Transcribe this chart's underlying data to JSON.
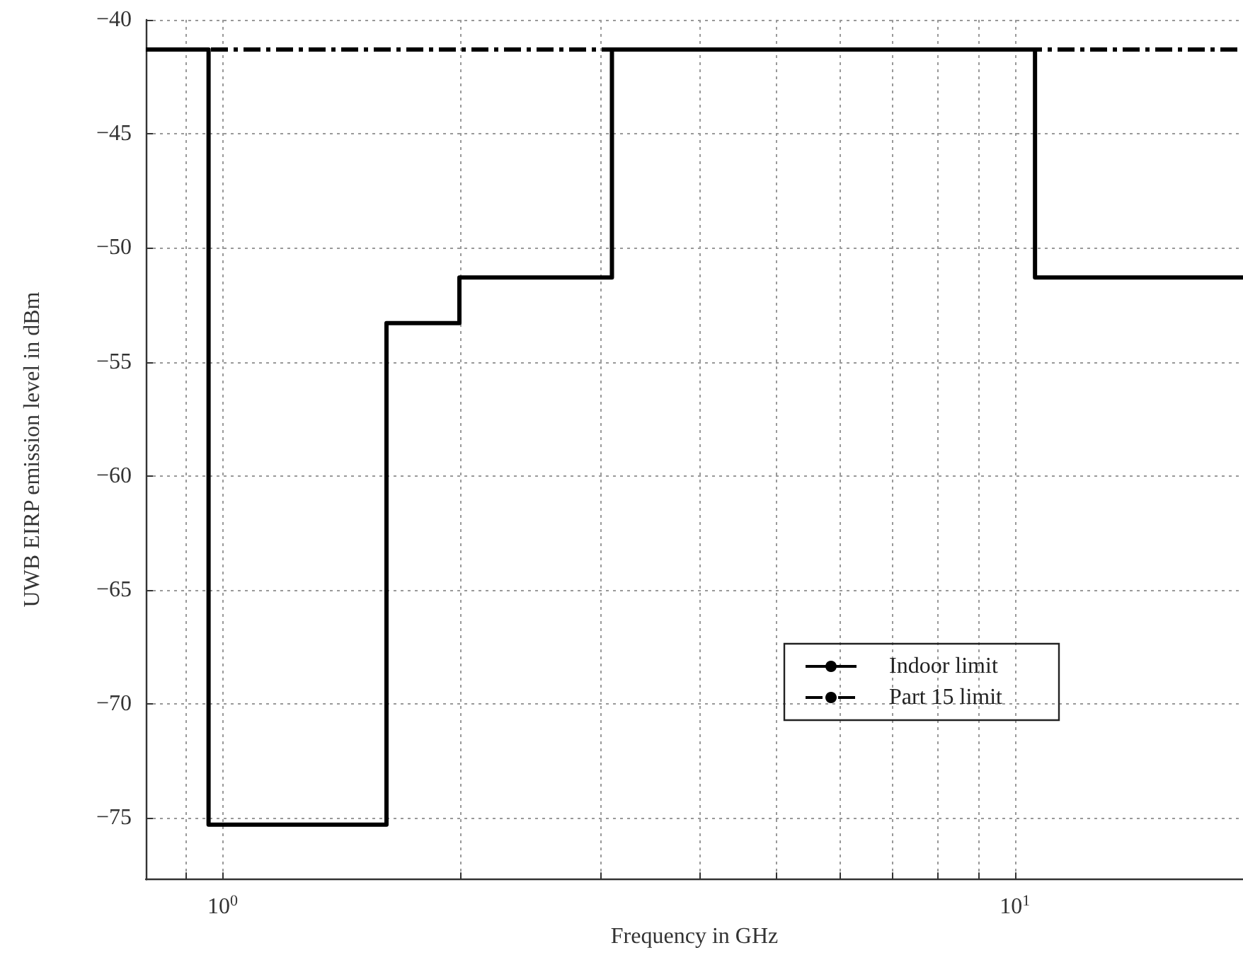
{
  "chart_data": {
    "type": "step",
    "xlabel": "Frequency in GHz",
    "ylabel": "UWB EIRP emission level in dBm",
    "log": "x",
    "xlim": [
      0.8,
      19.4
    ],
    "ylim": [
      -77.7,
      -40
    ],
    "xticks": [
      {
        "value": 0.8,
        "label": null
      },
      {
        "value": 0.9,
        "label": null
      },
      {
        "value": 1,
        "label": "10$^{0}$"
      },
      {
        "value": 2,
        "label": null
      },
      {
        "value": 3,
        "label": null
      },
      {
        "value": 4,
        "label": null
      },
      {
        "value": 5,
        "label": null
      },
      {
        "value": 6,
        "label": null
      },
      {
        "value": 7,
        "label": null
      },
      {
        "value": 8,
        "label": null
      },
      {
        "value": 9,
        "label": null
      },
      {
        "value": 10,
        "label": "10$^{1}$"
      }
    ],
    "yticks": [
      -75,
      -70,
      -65,
      -60,
      -55,
      -50,
      -45,
      -40
    ],
    "grid": true,
    "legend": "right",
    "marker": "none",
    "series": [
      {
        "name": "Indoor limit",
        "color": "#000000",
        "line_style": "solid",
        "x": [
          0.8,
          0.96,
          1.61,
          1.99,
          3.1,
          10.6,
          19.4
        ],
        "values": [
          -41.3,
          -75.3,
          -53.3,
          -51.3,
          -41.3,
          -51.3,
          -51.3
        ]
      },
      {
        "name": "Part 15 limit",
        "type": "line",
        "color": "#000000",
        "line_style": "dashed",
        "x": [
          0.8,
          19.4
        ],
        "values": [
          -41.3,
          -41.3
        ]
      }
    ]
  }
}
